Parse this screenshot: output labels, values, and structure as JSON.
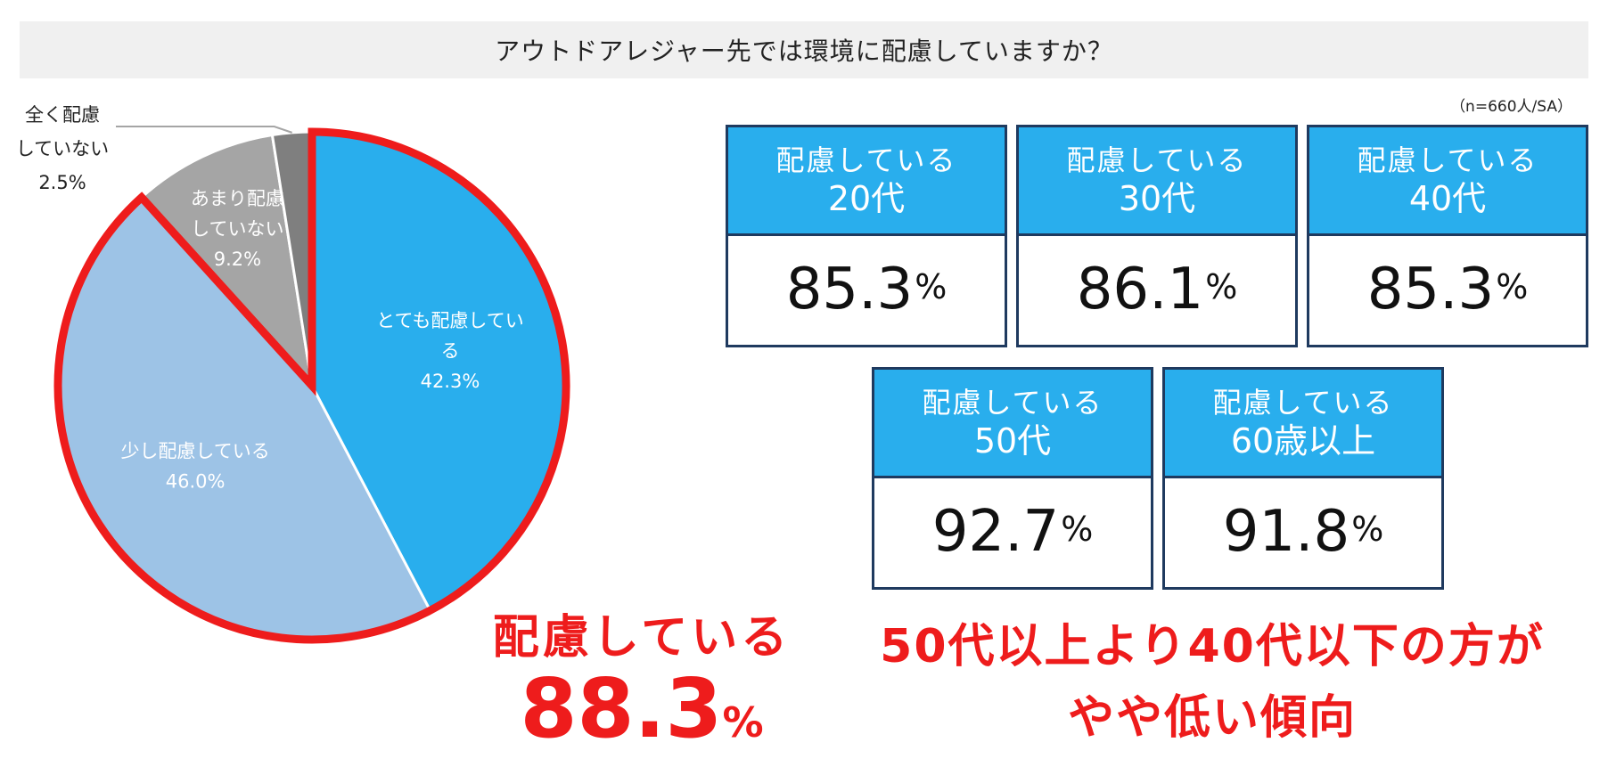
{
  "title": "アウトドアレジャー先では環境に配慮していますか？",
  "sample_note": "（n=660人/SA）",
  "chart_data": {
    "type": "pie",
    "slices": [
      {
        "label_lines": [
          "とても配慮してい",
          "る"
        ],
        "value_label": "42.3%",
        "value": 42.3,
        "color": "#29aeed",
        "label_pos": "inside"
      },
      {
        "label_lines": [
          "少し配慮している"
        ],
        "value_label": "46.0%",
        "value": 46.0,
        "color": "#9dc3e6",
        "label_pos": "inside"
      },
      {
        "label_lines": [
          "あまり配慮",
          "していない"
        ],
        "value_label": "9.2%",
        "value": 9.2,
        "color": "#a5a5a5",
        "label_pos": "inside"
      },
      {
        "label_lines": [
          "全く配慮",
          "していない"
        ],
        "value_label": "2.5%",
        "value": 2.5,
        "color": "#7f7f7f",
        "label_pos": "outside"
      }
    ],
    "highlight_color": "#ee1c1c",
    "highlight_slices": [
      0,
      1
    ]
  },
  "cards": [
    {
      "line1": "配慮している",
      "line2": "20代",
      "value": "85.3",
      "unit": "%"
    },
    {
      "line1": "配慮している",
      "line2": "30代",
      "value": "86.1",
      "unit": "%"
    },
    {
      "line1": "配慮している",
      "line2": "40代",
      "value": "85.3",
      "unit": "%"
    },
    {
      "line1": "配慮している",
      "line2": "50代",
      "value": "92.7",
      "unit": "%"
    },
    {
      "line1": "配慮している",
      "line2": "60歳以上",
      "value": "91.8",
      "unit": "%"
    }
  ],
  "summary_left": {
    "line": "配慮している",
    "value": "88.3",
    "unit": "%"
  },
  "summary_right": {
    "line1": "50代以上より40代以下の方が",
    "line2": "やや低い傾向"
  },
  "colors": {
    "card_header": "#29aeed",
    "card_border": "#1f3a5f",
    "accent_red": "#ee1c1c",
    "title_bg": "#f0f0f0"
  }
}
